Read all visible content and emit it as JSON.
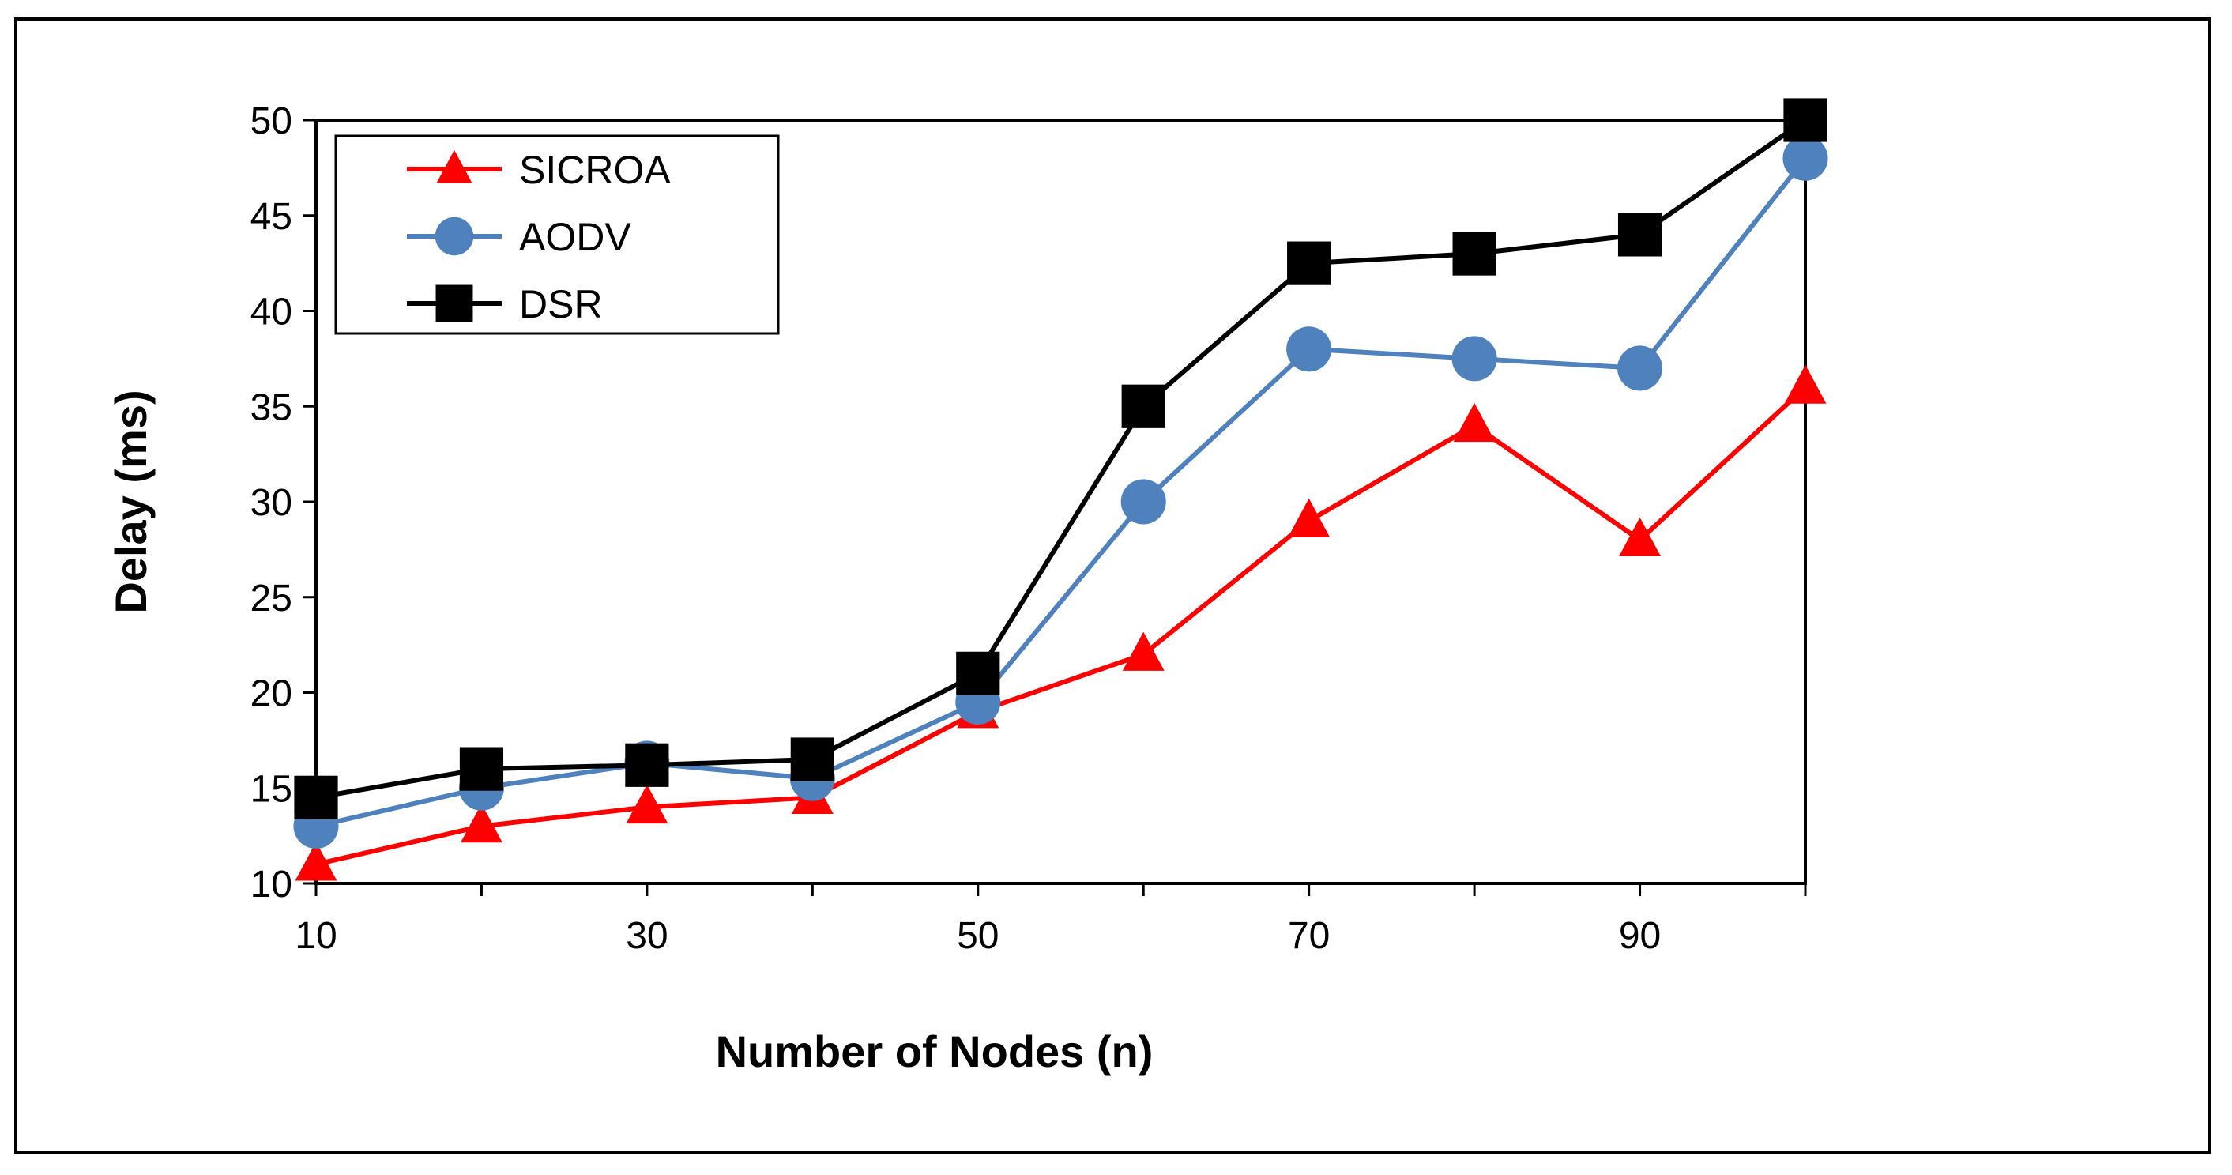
{
  "chart_data": {
    "type": "line",
    "title": "",
    "xlabel": "Number of Nodes (n)",
    "ylabel": "Delay (ms)",
    "x": [
      10,
      20,
      30,
      40,
      50,
      60,
      70,
      80,
      90,
      100
    ],
    "xlim": [
      10,
      100
    ],
    "ylim": [
      10,
      50
    ],
    "xticks": [
      10,
      30,
      50,
      70,
      90
    ],
    "yticks": [
      10,
      15,
      20,
      25,
      30,
      35,
      40,
      45,
      50
    ],
    "grid": false,
    "legend_position": "top-left",
    "series": [
      {
        "name": "SICROA",
        "color": "#ff0000",
        "marker": "triangle",
        "values": [
          11,
          13,
          14,
          14.5,
          19,
          22,
          29,
          34,
          28,
          36
        ]
      },
      {
        "name": "AODV",
        "color": "#4f81bd",
        "marker": "circle",
        "values": [
          13,
          15,
          16.3,
          15.5,
          19.5,
          30,
          38,
          37.5,
          37,
          48
        ]
      },
      {
        "name": "DSR",
        "color": "#000000",
        "marker": "square",
        "values": [
          14.5,
          16,
          16.2,
          16.5,
          21,
          35,
          42.5,
          43,
          44,
          50
        ]
      }
    ]
  }
}
